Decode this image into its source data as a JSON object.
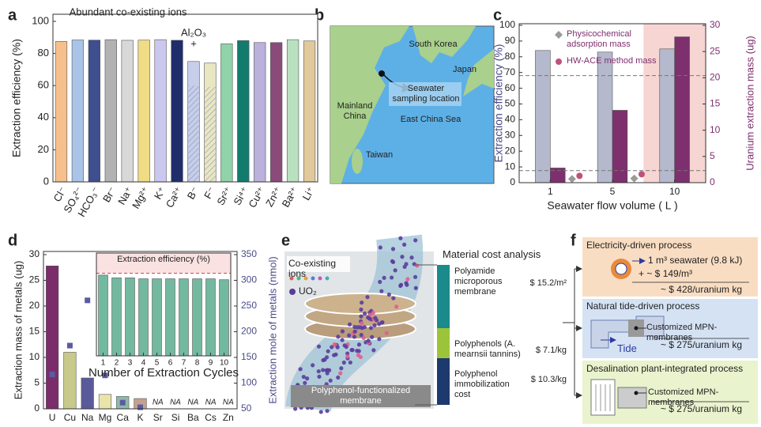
{
  "panel_labels": [
    "a",
    "b",
    "c",
    "d",
    "e",
    "f"
  ],
  "chart_data": [
    {
      "type": "bar",
      "categories": [
        "Cl⁻",
        "SO₄²⁻",
        "HCO₃⁻",
        "Br⁻",
        "Na⁺",
        "Mg²⁺",
        "K⁺",
        "Ca²⁺",
        "B⁻",
        "F⁻",
        "Sr²⁺",
        "Si⁴⁺",
        "Cu²⁺",
        "Zn²⁺",
        "Ba²⁺",
        "Li⁺"
      ],
      "values": [
        87.5,
        88.4,
        88.3,
        88.6,
        88.2,
        88.3,
        88.6,
        88.2,
        75,
        74,
        86,
        88,
        86.8,
        86.8,
        88.6,
        87.8
      ],
      "colors": [
        "#f6c08c",
        "#aac4e8",
        "#3e4f8d",
        "#b2b2b2",
        "#d8d8d8",
        "#f0dc84",
        "#cac8ee",
        "#1f2d6b",
        "#c6cee9",
        "#e9e7c2",
        "#90d2a9",
        "#157a6e",
        "#bab1dc",
        "#8a4b7b",
        "#b9e1c1",
        "#e1c99b"
      ],
      "hatched": [
        false,
        false,
        false,
        false,
        false,
        false,
        false,
        false,
        true,
        true,
        false,
        false,
        false,
        false,
        false,
        false
      ],
      "ylim": [
        0,
        100
      ],
      "yticks": [
        0,
        20,
        40,
        60,
        80,
        100
      ],
      "y_label": "Extraction efficiency (%)",
      "annotations": [
        "Abundant co-existing ions",
        "Al₂O₃",
        "+"
      ]
    },
    {
      "type": "bar",
      "categories": [
        "1",
        "5",
        "10"
      ],
      "x_label": "Seawater flow volume ( L )",
      "y_label": "Extraction efficiency (%)",
      "y2_label": "Uranium extraction mass (ug)",
      "series": [
        {
          "color": "#b5b9cd",
          "values": [
            84,
            83,
            85
          ]
        },
        {
          "axis": "y2",
          "color": "#7d2f6e",
          "values": [
            2.8,
            13.8,
            27.8
          ]
        },
        {
          "name": "Physicochemical adsorption mass",
          "marker": "diamond",
          "color": "#9a9a9a",
          "axis": "y2",
          "values": [
            0.7,
            0.8,
            null
          ]
        },
        {
          "name": "HW-ACE method mass",
          "marker": "circle",
          "color": "#c0507a",
          "axis": "y2",
          "values": [
            1.3,
            1.6,
            null
          ]
        }
      ],
      "ylim": [
        0,
        100
      ],
      "yticks": [
        0,
        10,
        20,
        30,
        40,
        50,
        60,
        70,
        80,
        90,
        100
      ],
      "y2lim": [
        0,
        30
      ],
      "y2ticks": [
        0,
        5,
        10,
        15,
        20,
        25,
        30
      ],
      "reference_lines": [
        {
          "value": 68
        },
        {
          "value": 2.3,
          "axis": "y2"
        }
      ],
      "shaded_index": 2
    },
    {
      "type": "bar",
      "categories": [
        "U",
        "Cu",
        "Na",
        "Mg",
        "Ca",
        "K",
        "Sr",
        "Si",
        "Ba",
        "Cs",
        "Zn"
      ],
      "y_label": "Extraction mass of metals (ug)",
      "y2_label": "Extraction mole of metals (nmol)",
      "series": [
        {
          "colors": [
            "#7b2d6b",
            "#c8ca8b",
            "#5a5a9a",
            "#e9e4a9",
            "#8fb9a9",
            "#c5a18d",
            "#cccccc",
            "#cccccc",
            "#cccccc",
            "#cccccc",
            "#cccccc"
          ],
          "values": [
            27.8,
            11,
            6,
            2.8,
            2.4,
            2,
            null,
            null,
            null,
            null,
            null
          ],
          "value_labels": [
            null,
            null,
            null,
            null,
            null,
            null,
            "NA",
            "NA",
            "NA",
            "NA",
            "NA"
          ]
        },
        {
          "axis": "y2",
          "marker": "square",
          "color": "#5b5aa2",
          "values": [
            117,
            173,
            261,
            115,
            62,
            53,
            null,
            null,
            null,
            null,
            null
          ]
        }
      ],
      "ylim": [
        0,
        30
      ],
      "yticks": [
        0,
        5,
        10,
        15,
        20,
        25,
        30
      ],
      "y2lim": [
        50,
        350
      ],
      "y2ticks": [
        50,
        100,
        150,
        200,
        250,
        300,
        350
      ]
    },
    {
      "type": "bar",
      "title": "Extraction efficiency (%)",
      "x_label": "Number of Extraction Cycles",
      "categories": [
        "1",
        "2",
        "3",
        "4",
        "5",
        "6",
        "7",
        "8",
        "9",
        "10"
      ],
      "values": [
        88,
        85,
        85,
        84,
        84,
        84,
        84,
        84,
        84,
        83
      ],
      "color": "#72b9a0",
      "ylim": [
        0,
        100
      ],
      "reference_line": 90
    }
  ],
  "map": {
    "labels": [
      "South Korea",
      "Japan",
      "Seawater sampling location",
      "Mainland China",
      "East China Sea",
      "Taiwan"
    ]
  },
  "membrane_diagram": {
    "ions_label": "Co-existing ions",
    "uranyl_label": "UO₂",
    "membrane_label": "Polyphenol-functionalized membrane",
    "cost_title": "Material cost analysis",
    "cost_items": [
      {
        "item": "Polyamide microporous membrane",
        "cost": "$ 15.2/m²"
      },
      {
        "item": "Polyphenols (A. mearnsii tannins)",
        "cost": "$ 7.1/kg"
      },
      {
        "item": "Polyphenol immobilization cost",
        "cost": "$ 10.3/kg"
      }
    ]
  },
  "process_diagram": {
    "processes": [
      {
        "title": "Electricity-driven process",
        "details": [
          "1 m³ seawater (9.8 kJ)",
          "+ ~ $ 149/m³"
        ],
        "cost": "~ $ 428/uranium kg"
      },
      {
        "title": "Natural tide-driven process",
        "details": [
          "Customized MPN-membranes",
          "Tide"
        ],
        "cost": "~ $ 275/uranium kg"
      },
      {
        "title": "Desalination plant-integrated process",
        "details": [
          "Customized MPN-membranes"
        ],
        "cost": "~ $ 275/uranium kg"
      }
    ]
  }
}
